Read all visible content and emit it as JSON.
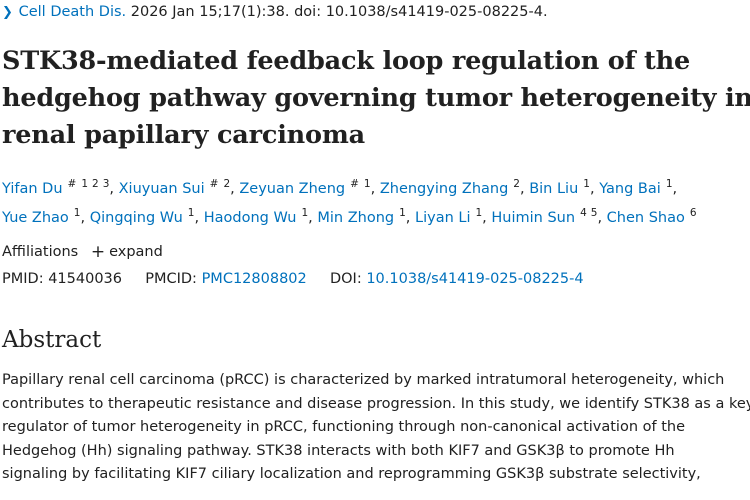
{
  "citation": {
    "chevron_icon": "chevron-right-icon",
    "journal": "Cell Death Dis.",
    "details": " 2026 Jan 15;17(1):38. doi: 10.1038/s41419-025-08225-4."
  },
  "title_lines": [
    "STK38-mediated feedback loop regulation of the",
    "hedgehog pathway governing tumor heterogeneity in",
    "renal papillary carcinoma"
  ],
  "authors": [
    {
      "name": "Yifan Du",
      "equal": "#",
      "affs": [
        "1",
        "2",
        "3"
      ]
    },
    {
      "name": "Xiuyuan Sui",
      "equal": "#",
      "affs": [
        "2"
      ]
    },
    {
      "name": "Zeyuan Zheng",
      "equal": "#",
      "affs": [
        "1"
      ]
    },
    {
      "name": "Zhengying Zhang",
      "equal": "",
      "affs": [
        "2"
      ]
    },
    {
      "name": "Bin Liu",
      "equal": "",
      "affs": [
        "1"
      ]
    },
    {
      "name": "Yang Bai",
      "equal": "",
      "affs": [
        "1"
      ]
    },
    {
      "name": "Yue Zhao",
      "equal": "",
      "affs": [
        "1"
      ]
    },
    {
      "name": "Qingqing Wu",
      "equal": "",
      "affs": [
        "1"
      ]
    },
    {
      "name": "Haodong Wu",
      "equal": "",
      "affs": [
        "1"
      ]
    },
    {
      "name": "Min Zhong",
      "equal": "",
      "affs": [
        "1"
      ]
    },
    {
      "name": "Liyan Li",
      "equal": "",
      "affs": [
        "1"
      ]
    },
    {
      "name": "Huimin Sun",
      "equal": "",
      "affs": [
        "4",
        "5"
      ]
    },
    {
      "name": "Chen Shao",
      "equal": "",
      "affs": [
        "6"
      ]
    }
  ],
  "affiliations": {
    "label": "Affiliations",
    "expand_icon": "plus-icon",
    "expand_label": "expand"
  },
  "ids": {
    "pmid_label": "PMID:",
    "pmid": "41540036",
    "pmcid_label": "PMCID:",
    "pmcid": "PMC12808802",
    "doi_label": "DOI:",
    "doi": "10.1038/s41419-025-08225-4"
  },
  "abstract": {
    "heading": "Abstract",
    "lines": [
      "Papillary renal cell carcinoma (pRCC) is characterized by marked intratumoral heterogeneity, which",
      "contributes to therapeutic resistance and disease progression. In this study, we identify STK38 as a key",
      "regulator of tumor heterogeneity in pRCC, functioning through non-canonical activation of the",
      "Hedgehog (Hh) signaling pathway. STK38 interacts with both KIF7 and GSK3β to promote Hh",
      "signaling by facilitating KIF7 ciliary localization and reprogramming GSK3β substrate selectivity,"
    ]
  },
  "colors": {
    "link": "#0071bc",
    "text": "#212121",
    "background": "#ffffff"
  }
}
